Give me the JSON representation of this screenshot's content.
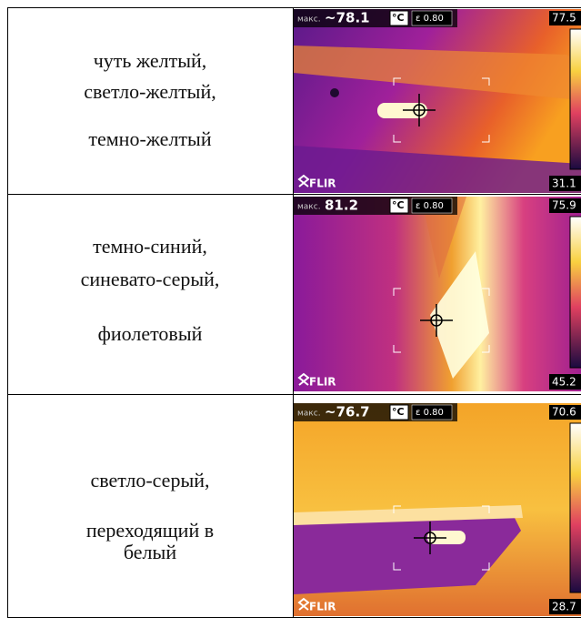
{
  "table": {
    "rows": [
      {
        "lines": [
          "чуть желтый,",
          "светло-желтый,",
          "темно-желтый"
        ],
        "image": {
          "max_label": "макс.",
          "max_value": "~78.1",
          "unit": "°C",
          "emissivity": "ε 0.80",
          "scale_top": "77.5",
          "scale_bottom": "31.1",
          "brand": "FLIR"
        }
      },
      {
        "lines": [
          "темно-синий,",
          "синевато-серый,",
          "фиолетовый"
        ],
        "image": {
          "max_label": "макс.",
          "max_value": "81.2",
          "unit": "°C",
          "emissivity": "ε 0.80",
          "scale_top": "75.9",
          "scale_bottom": "45.2",
          "brand": "FLIR"
        }
      },
      {
        "lines": [
          "светло-серый,",
          "переходящий в",
          "белый"
        ],
        "image": {
          "max_label": "макс.",
          "max_value": "~76.7",
          "unit": "°C",
          "emissivity": "ε 0.80",
          "scale_top": "70.6",
          "scale_bottom": "28.7",
          "brand": "FLIR"
        }
      }
    ]
  }
}
